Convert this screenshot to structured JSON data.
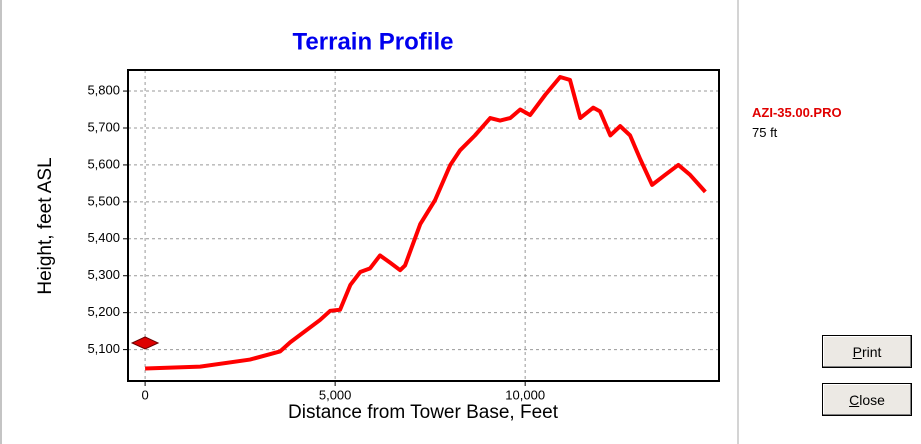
{
  "chart_data": {
    "type": "line",
    "title": "Terrain Profile",
    "x_label": "Distance from Tower Base, Feet",
    "y_label": "Height, feet ASL",
    "x": [
      0,
      1450,
      2760,
      3550,
      3820,
      4600,
      4870,
      5130,
      5400,
      5660,
      5920,
      6180,
      6450,
      6710,
      6840,
      7240,
      7630,
      8030,
      8290,
      8680,
      9080,
      9340,
      9610,
      9870,
      10130,
      10530,
      10920,
      11180,
      11450,
      11790,
      11970,
      12240,
      12500,
      12760,
      13030,
      13340,
      13680,
      14030,
      14340,
      14740
    ],
    "series": [
      {
        "name": "Terrain",
        "color": "#ff0000",
        "values": [
          5049,
          5054,
          5073,
          5095,
          5120,
          5180,
          5205,
          5208,
          5275,
          5310,
          5320,
          5355,
          5335,
          5315,
          5328,
          5440,
          5505,
          5600,
          5640,
          5680,
          5727,
          5720,
          5727,
          5750,
          5735,
          5790,
          5838,
          5830,
          5727,
          5755,
          5745,
          5680,
          5705,
          5680,
          5615,
          5546,
          5573,
          5600,
          5573,
          5527
        ]
      }
    ],
    "markers": [
      {
        "x": 0,
        "y": 5118,
        "color": "#dd0000"
      }
    ],
    "xlim": [
      -450,
      15100
    ],
    "ylim": [
      5015,
      5857
    ],
    "xticks": [
      0,
      {
        "value": 5000,
        "label": "5,000"
      },
      {
        "value": 10000,
        "label": "10,000"
      }
    ],
    "yticks": [
      {
        "value": 5100,
        "label": "5,100"
      },
      {
        "value": 5200,
        "label": "5,200"
      },
      {
        "value": 5300,
        "label": "5,300"
      },
      {
        "value": 5400,
        "label": "5,400"
      },
      {
        "value": 5500,
        "label": "5,500"
      },
      {
        "value": 5600,
        "label": "5,600"
      },
      {
        "value": 5700,
        "label": "5,700"
      },
      {
        "value": 5800,
        "label": "5,800"
      }
    ],
    "grid": true
  },
  "side_panel": {
    "file": "AZI-35.00.PRO",
    "height": "75 ft"
  },
  "buttons": [
    "Print",
    "Close"
  ]
}
